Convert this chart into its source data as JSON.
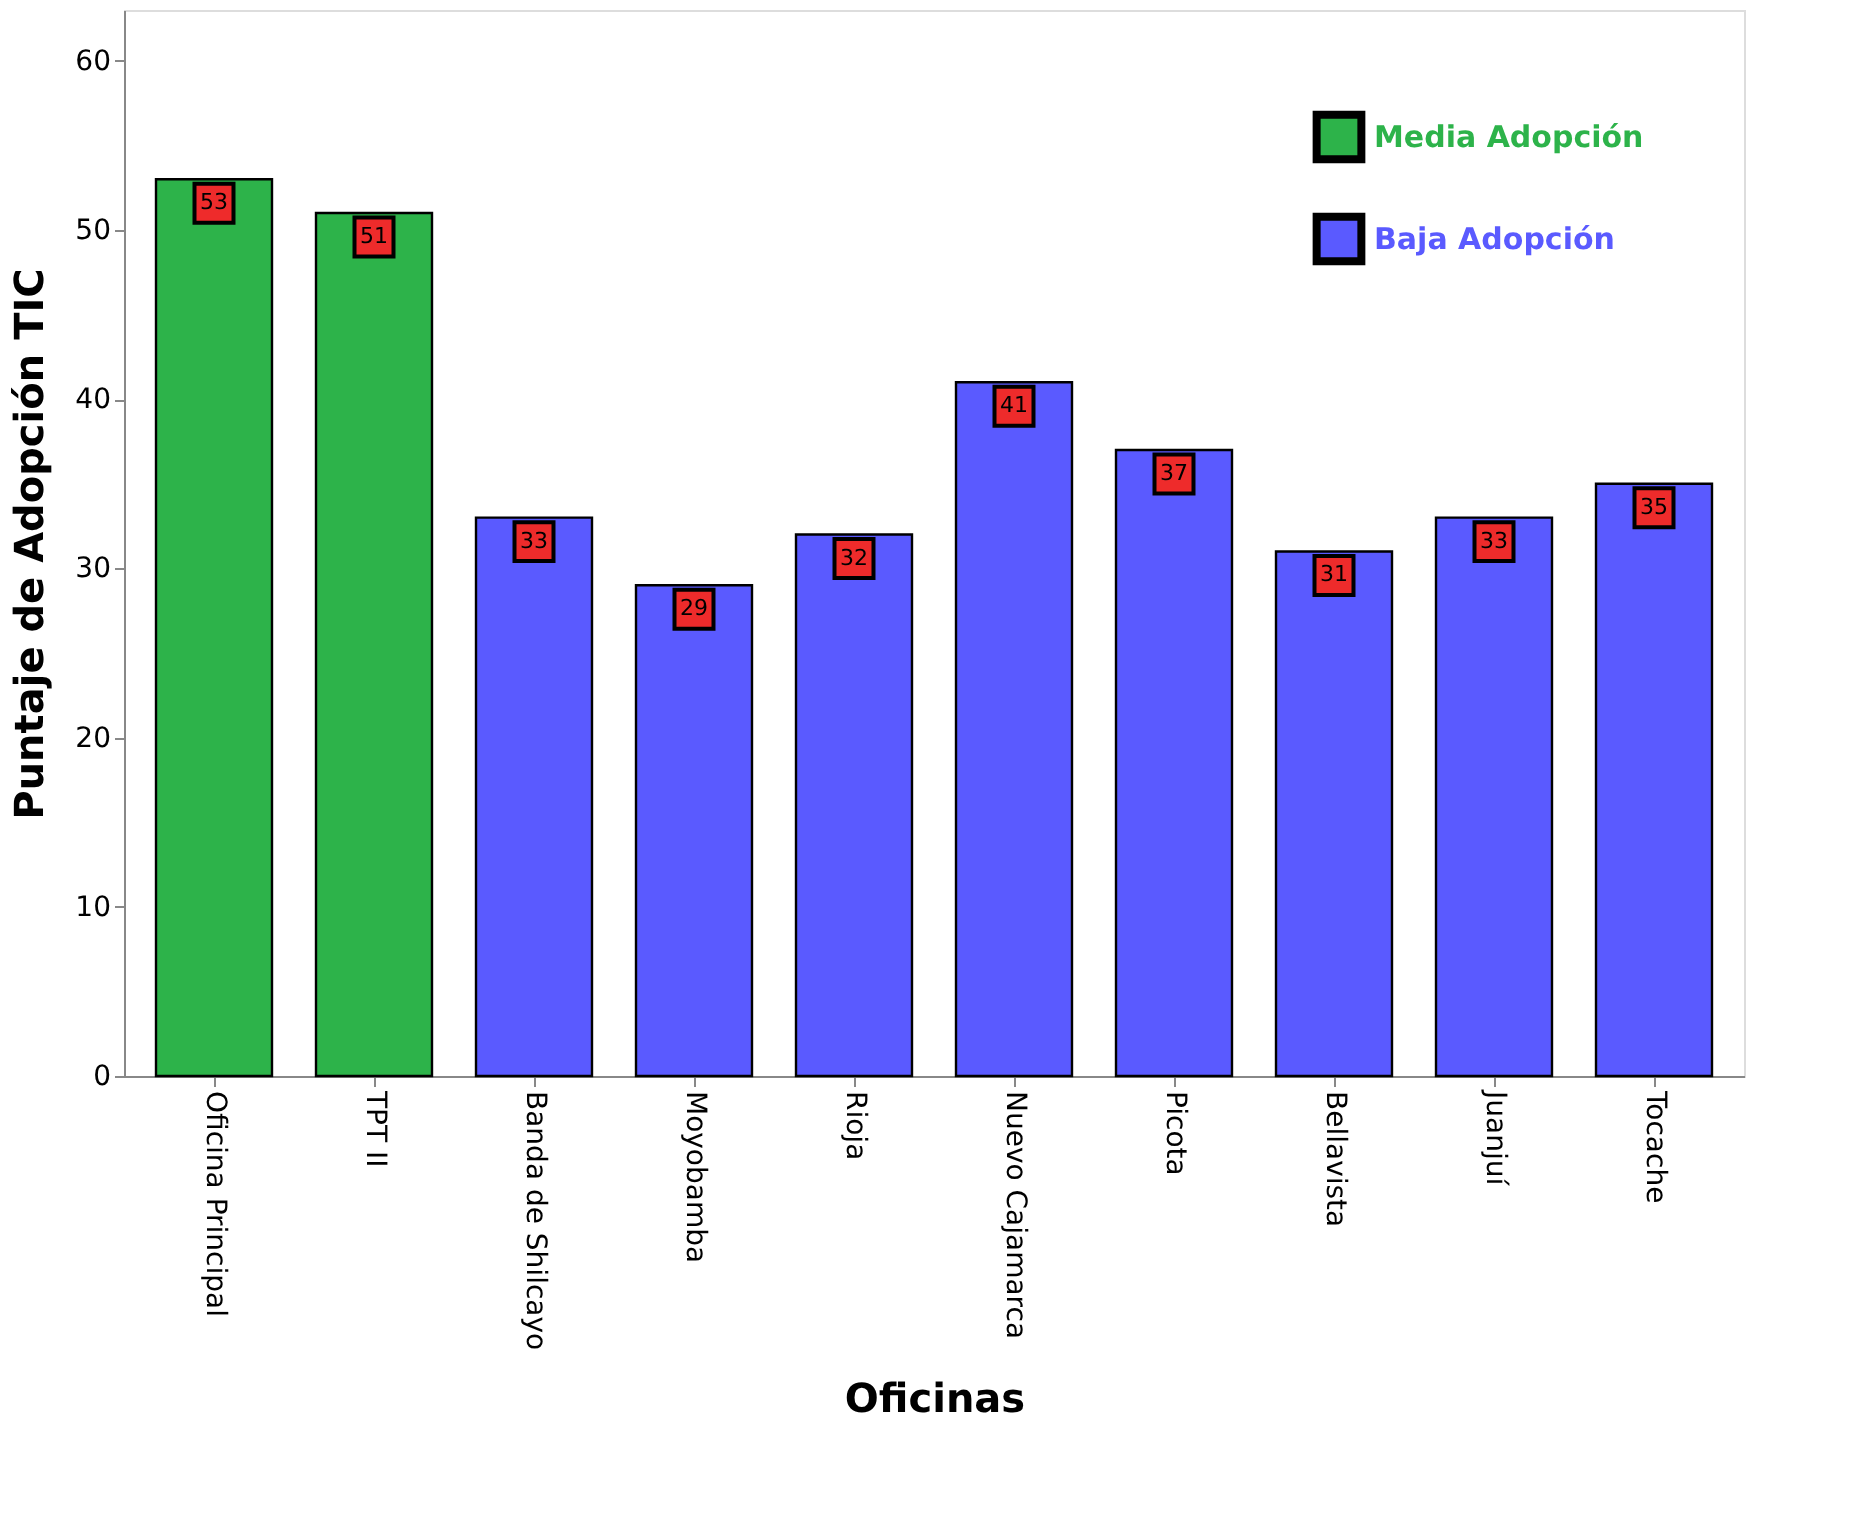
{
  "chart_data": {
    "type": "bar",
    "xlabel": "Oficinas",
    "ylabel": "Puntaje de Adopción TIC",
    "categories": [
      "Oficina Principal",
      "TPT II",
      "Banda de Shilcayo",
      "Moyobamba",
      "Rioja",
      "Nuevo Cajamarca",
      "Picota",
      "Bellavista",
      "Juanjuí",
      "Tocache"
    ],
    "series": [
      {
        "name": "Media Adopción",
        "color": "#2db34a",
        "values": [
          53,
          51,
          null,
          null,
          null,
          null,
          null,
          null,
          null,
          null
        ]
      },
      {
        "name": "Baja Adopción",
        "color": "#5a5aff",
        "values": [
          null,
          null,
          33,
          29,
          32,
          41,
          37,
          31,
          33,
          35
        ]
      }
    ],
    "ylim": [
      0,
      63
    ],
    "yticks": [
      0,
      10,
      20,
      30,
      40,
      50,
      60
    ],
    "grid": false,
    "legend": "top right",
    "data_labels": true
  }
}
